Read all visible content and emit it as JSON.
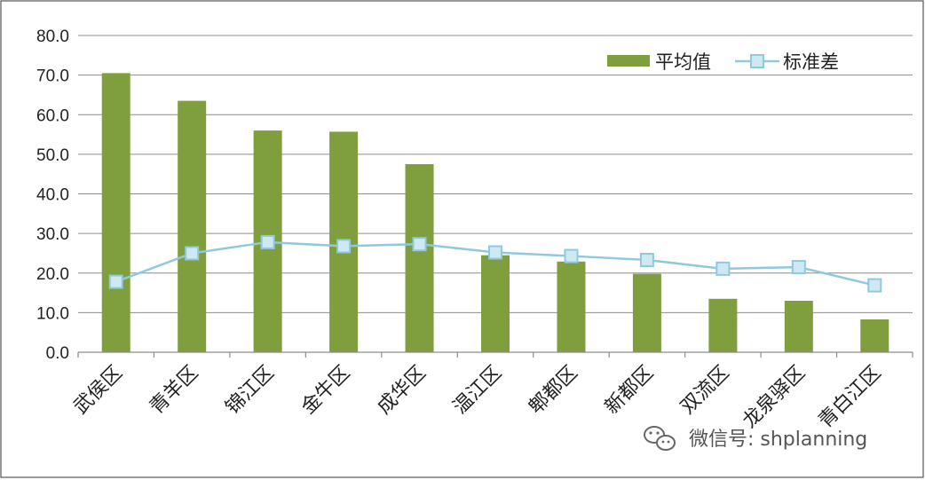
{
  "chart_data": {
    "type": "bar",
    "categories": [
      "武侯区",
      "青羊区",
      "锦江区",
      "金牛区",
      "成华区",
      "温江区",
      "郫都区",
      "新都区",
      "双流区",
      "龙泉驿区",
      "青白江区"
    ],
    "series": [
      {
        "name": "平均值",
        "type": "bar",
        "color": "#7f9f3e",
        "values": [
          70.5,
          63.5,
          56.0,
          55.7,
          47.5,
          24.5,
          22.9,
          19.8,
          13.5,
          13.0,
          8.3
        ]
      },
      {
        "name": "标准差",
        "type": "line",
        "color": "#8fc9df",
        "values": [
          17.8,
          25.0,
          27.8,
          26.8,
          27.3,
          25.2,
          24.3,
          23.3,
          21.1,
          21.5,
          16.9
        ]
      }
    ],
    "yticks": [
      "0.0",
      "10.0",
      "20.0",
      "30.0",
      "40.0",
      "50.0",
      "60.0",
      "70.0",
      "80.0"
    ],
    "ylim": [
      0,
      80
    ],
    "grid": true,
    "legend_position": "top-right",
    "title": "",
    "xlabel": "",
    "ylabel": ""
  },
  "watermark": {
    "icon": "wechat-icon",
    "text": "微信号: shplanning"
  }
}
